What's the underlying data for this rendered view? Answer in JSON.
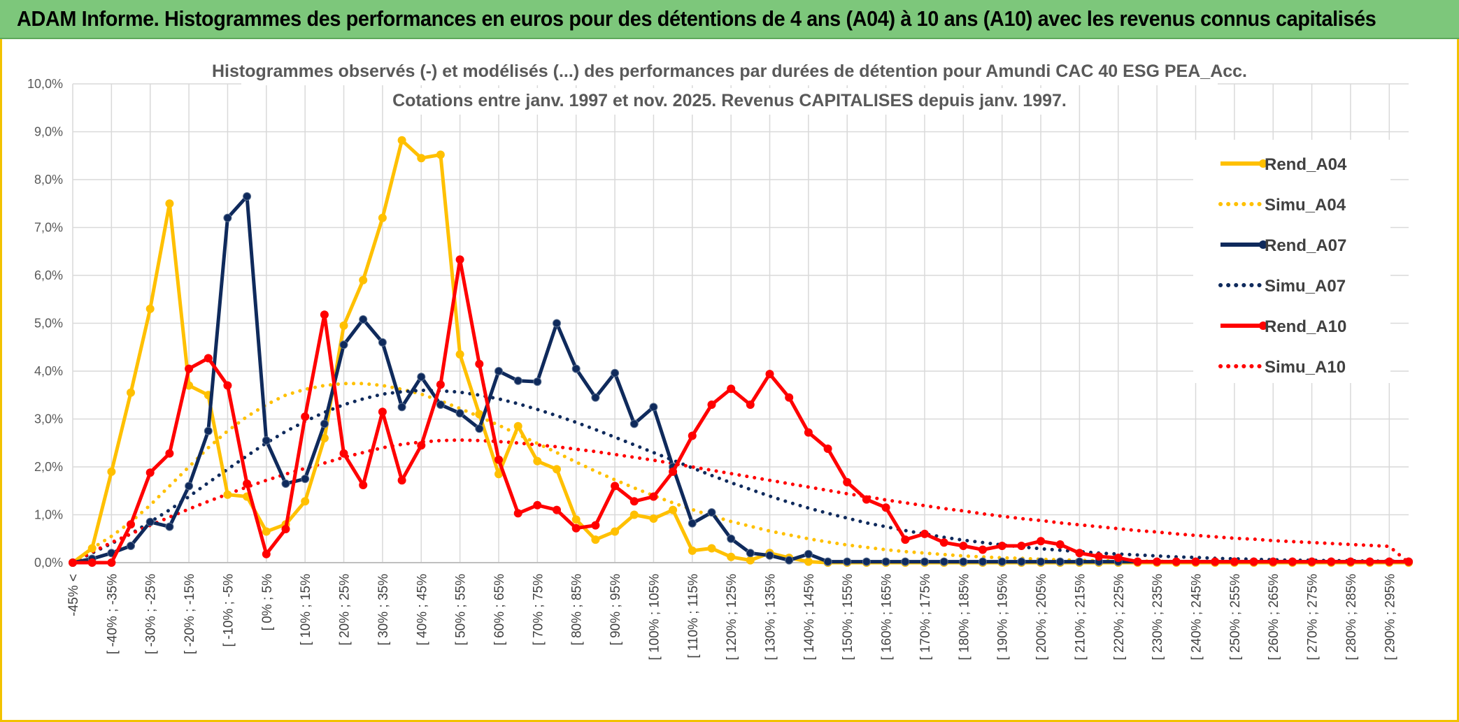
{
  "banner": {
    "title": "ADAM Informe. Histogrammes des performances en euros pour des détentions de 4 ans (A04) à 10 ans (A10) avec les revenus connus capitalisés"
  },
  "chart_data": {
    "type": "line",
    "title_line1": "Histogrammes observés (-) et modélisés (...) des performances par durées de détention pour Amundi CAC 40 ESG PEA_Acc.",
    "title_line2": "Cotations entre janv. 1997 et nov. 2025. Revenus CAPITALISES depuis janv. 1997.",
    "ylim": [
      0,
      10
    ],
    "y_ticks": [
      "0,0%",
      "1,0%",
      "2,0%",
      "3,0%",
      "4,0%",
      "5,0%",
      "6,0%",
      "7,0%",
      "8,0%",
      "9,0%",
      "10,0%"
    ],
    "categories": [
      "-45% <",
      "[ -45% ; -40%",
      "[ -40% ; -35%",
      "[ -35% ; -30%",
      "[ -30% ; -25%",
      "[ -25% ; -20%",
      "[ -20% ; -15%",
      "[ -15% ; -10%",
      "[ -10% ; -5%",
      "[ -5% ; 0%",
      "[ 0% ; 5%",
      "[ 5% ; 10%",
      "[ 10% ; 15%",
      "[ 15% ; 20%",
      "[ 20% ; 25%",
      "[ 25% ; 30%",
      "[ 30% ; 35%",
      "[ 35% ; 40%",
      "[ 40% ; 45%",
      "[ 45% ; 50%",
      "[ 50% ; 55%",
      "[ 55% ; 60%",
      "[ 60% ; 65%",
      "[ 65% ; 70%",
      "[ 70% ; 75%",
      "[ 75% ; 80%",
      "[ 80% ; 85%",
      "[ 85% ; 90%",
      "[ 90% ; 95%",
      "[ 95% ; 100%",
      "[ 100% ; 105%",
      "[ 105% ; 110%",
      "[ 110% ; 115%",
      "[ 115% ; 120%",
      "[ 120% ; 125%",
      "[ 125% ; 130%",
      "[ 130% ; 135%",
      "[ 135% ; 140%",
      "[ 140% ; 145%",
      "[ 145% ; 150%",
      "[ 150% ; 155%",
      "[ 155% ; 160%",
      "[ 160% ; 165%",
      "[ 165% ; 170%",
      "[ 170% ; 175%",
      "[ 175% ; 180%",
      "[ 180% ; 185%",
      "[ 185% ; 190%",
      "[ 190% ; 195%",
      "[ 195% ; 200%",
      "[ 200% ; 205%",
      "[ 205% ; 210%",
      "[ 210% ; 215%",
      "[ 215% ; 220%",
      "[ 220% ; 225%",
      "[ 225% ; 230%",
      "[ 230% ; 235%",
      "[ 235% ; 240%",
      "[ 240% ; 245%",
      "[ 245% ; 250%",
      "[ 250% ; 255%",
      "[ 255% ; 260%",
      "[ 260% ; 265%",
      "[ 265% ; 270%",
      "[ 270% ; 275%",
      "[ 275% ; 280%",
      "[ 280% ; 285%",
      "[ 285% ; 290%",
      "[ 290% ; 295%",
      "[ 295% ; 300%"
    ],
    "labeled_every": 2,
    "series": [
      {
        "name": "Rend_A04",
        "color": "#ffc000",
        "style": "solid",
        "values": [
          0.0,
          0.3,
          1.9,
          3.55,
          5.3,
          7.5,
          3.7,
          3.5,
          1.42,
          1.38,
          0.65,
          0.8,
          1.28,
          2.6,
          4.95,
          5.9,
          7.2,
          8.82,
          8.45,
          8.52,
          4.35,
          3.1,
          1.85,
          2.85,
          2.12,
          1.95,
          0.9,
          0.48,
          0.65,
          1.0,
          0.92,
          1.1,
          0.25,
          0.3,
          0.12,
          0.05,
          0.2,
          0.1,
          0.02,
          0.0,
          0.0,
          0.0,
          0.0,
          0.0,
          0.0,
          0.0,
          0.0,
          0.0,
          0.0,
          0.0,
          0.0,
          0.0,
          0.0,
          0.0,
          0.0,
          0.0,
          0.0,
          0.0,
          0.0,
          0.0,
          0.0,
          0.0,
          0.0,
          0.0,
          0.0,
          0.0,
          0.0,
          0.0,
          0.0,
          0.0
        ]
      },
      {
        "name": "Simu_A04",
        "color": "#ffc000",
        "style": "dotted",
        "values": [
          0.0,
          0.3,
          0.55,
          0.85,
          1.2,
          1.6,
          2.0,
          2.4,
          2.75,
          3.05,
          3.3,
          3.5,
          3.62,
          3.7,
          3.74,
          3.74,
          3.7,
          3.62,
          3.52,
          3.38,
          3.22,
          3.05,
          2.87,
          2.68,
          2.49,
          2.3,
          2.1,
          1.91,
          1.73,
          1.56,
          1.4,
          1.25,
          1.11,
          0.98,
          0.86,
          0.76,
          0.66,
          0.58,
          0.5,
          0.43,
          0.37,
          0.32,
          0.27,
          0.23,
          0.2,
          0.17,
          0.14,
          0.12,
          0.1,
          0.09,
          0.07,
          0.06,
          0.05,
          0.04,
          0.04,
          0.03,
          0.03,
          0.02,
          0.02,
          0.02,
          0.01,
          0.01,
          0.01,
          0.01,
          0.01,
          0.0,
          0.0,
          0.0,
          0.0,
          0.0
        ]
      },
      {
        "name": "Rend_A07",
        "color": "#0f2a5c",
        "style": "solid",
        "values": [
          0.0,
          0.08,
          0.2,
          0.35,
          0.85,
          0.75,
          1.6,
          2.75,
          7.2,
          7.65,
          2.55,
          1.65,
          1.75,
          2.9,
          4.55,
          5.08,
          4.6,
          3.25,
          3.88,
          3.3,
          3.12,
          2.8,
          4.0,
          3.8,
          3.78,
          5.0,
          4.05,
          3.45,
          3.96,
          2.9,
          3.25,
          2.0,
          0.82,
          1.05,
          0.5,
          0.2,
          0.15,
          0.05,
          0.18,
          0.02,
          0.02,
          0.02,
          0.02,
          0.02,
          0.02,
          0.02,
          0.02,
          0.02,
          0.02,
          0.02,
          0.02,
          0.02,
          0.02,
          0.02,
          0.02,
          0.02,
          0.02,
          0.02,
          0.02,
          0.02,
          0.02,
          0.02,
          0.02,
          0.02,
          0.02,
          0.02,
          0.02,
          0.02,
          0.02,
          0.02
        ]
      },
      {
        "name": "Simu_A07",
        "color": "#0f2a5c",
        "style": "dotted",
        "values": [
          0.0,
          0.2,
          0.4,
          0.6,
          0.85,
          1.1,
          1.38,
          1.67,
          1.95,
          2.23,
          2.5,
          2.74,
          2.95,
          3.14,
          3.3,
          3.42,
          3.52,
          3.57,
          3.6,
          3.59,
          3.56,
          3.5,
          3.42,
          3.32,
          3.2,
          3.07,
          2.93,
          2.78,
          2.62,
          2.46,
          2.3,
          2.14,
          1.98,
          1.82,
          1.67,
          1.53,
          1.39,
          1.26,
          1.14,
          1.03,
          0.93,
          0.83,
          0.75,
          0.67,
          0.6,
          0.53,
          0.47,
          0.42,
          0.37,
          0.33,
          0.29,
          0.26,
          0.23,
          0.2,
          0.18,
          0.16,
          0.14,
          0.12,
          0.11,
          0.09,
          0.08,
          0.07,
          0.06,
          0.05,
          0.05,
          0.04,
          0.04,
          0.03,
          0.03,
          0.02
        ]
      },
      {
        "name": "Rend_A10",
        "color": "#ff0000",
        "style": "solid",
        "values": [
          0.0,
          0.0,
          0.0,
          0.8,
          1.88,
          2.28,
          4.05,
          4.27,
          3.7,
          1.65,
          0.18,
          0.7,
          3.05,
          5.18,
          2.28,
          1.62,
          3.15,
          1.72,
          2.45,
          3.72,
          6.33,
          4.15,
          2.15,
          1.03,
          1.2,
          1.1,
          0.72,
          0.78,
          1.6,
          1.28,
          1.38,
          1.9,
          2.65,
          3.3,
          3.63,
          3.3,
          3.94,
          3.45,
          2.72,
          2.38,
          1.68,
          1.32,
          1.15,
          0.48,
          0.6,
          0.42,
          0.35,
          0.27,
          0.35,
          0.35,
          0.45,
          0.38,
          0.2,
          0.13,
          0.1,
          0.02,
          0.02,
          0.02,
          0.02,
          0.02,
          0.02,
          0.02,
          0.02,
          0.02,
          0.02,
          0.02,
          0.02,
          0.02,
          0.02,
          0.02
        ]
      },
      {
        "name": "Simu_A10",
        "color": "#ff0000",
        "style": "dotted",
        "values": [
          0.0,
          0.22,
          0.42,
          0.6,
          0.78,
          0.95,
          1.12,
          1.28,
          1.43,
          1.58,
          1.72,
          1.85,
          1.97,
          2.08,
          2.2,
          2.3,
          2.4,
          2.47,
          2.52,
          2.55,
          2.56,
          2.55,
          2.53,
          2.5,
          2.46,
          2.42,
          2.37,
          2.32,
          2.26,
          2.2,
          2.14,
          2.07,
          2.0,
          1.93,
          1.86,
          1.79,
          1.72,
          1.65,
          1.58,
          1.51,
          1.44,
          1.38,
          1.31,
          1.25,
          1.19,
          1.13,
          1.08,
          1.02,
          0.97,
          0.92,
          0.88,
          0.83,
          0.79,
          0.75,
          0.71,
          0.67,
          0.64,
          0.6,
          0.57,
          0.54,
          0.51,
          0.49,
          0.46,
          0.44,
          0.42,
          0.4,
          0.38,
          0.36,
          0.34,
          0.0
        ]
      }
    ],
    "legend": [
      "Rend_A04",
      "Simu_A04",
      "Rend_A07",
      "Simu_A07",
      "Rend_A10",
      "Simu_A10"
    ],
    "legend_position": "top-right",
    "grid": true
  }
}
